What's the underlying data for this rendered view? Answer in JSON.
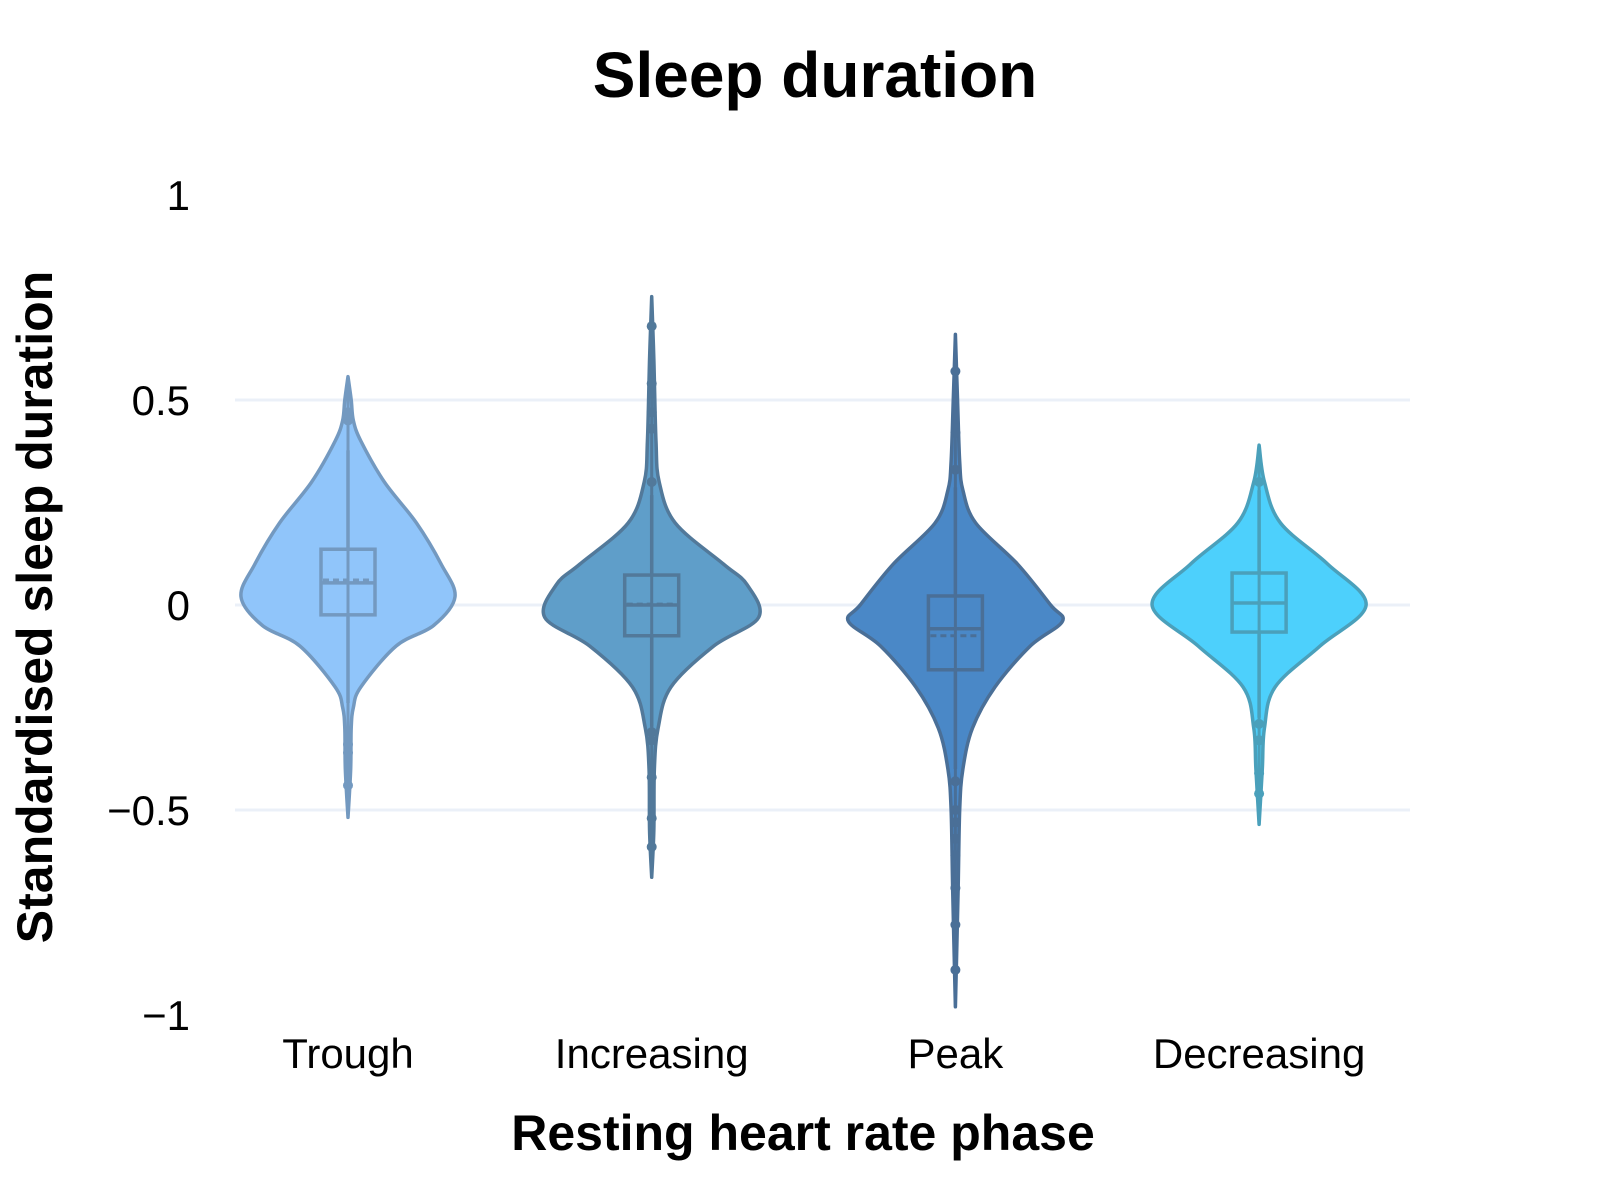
{
  "chart_data": {
    "type": "violin",
    "title": "Sleep duration",
    "xlabel": "Resting heart rate phase",
    "ylabel": "Standardised sleep duration",
    "ylim": [
      -1,
      1
    ],
    "yticks": [
      1,
      0.5,
      0,
      -0.5,
      -1
    ],
    "ytick_labels": [
      "1",
      "0.5",
      "0",
      "−0.5",
      "−1"
    ],
    "grid": true,
    "categories": [
      "Trough",
      "Increasing",
      "Peak",
      "Decreasing"
    ],
    "series": [
      {
        "category": "Trough",
        "fill": "#90c5fa",
        "line": "#7399c0",
        "box": {
          "q1": -0.024,
          "median": 0.054,
          "mean": 0.061,
          "q3": 0.136,
          "whisker_low": -0.239,
          "whisker_high": 0.377
        },
        "range": [
          -0.518,
          0.557
        ],
        "outliers": [
          0.47,
          0.45,
          -0.34,
          -0.36,
          -0.44
        ],
        "density": [
          [
            0.557,
            0
          ],
          [
            0.5,
            0.03
          ],
          [
            0.45,
            0.05
          ],
          [
            0.4,
            0.12
          ],
          [
            0.3,
            0.34
          ],
          [
            0.2,
            0.64
          ],
          [
            0.1,
            0.87
          ],
          [
            0.02,
            1.0
          ],
          [
            -0.05,
            0.8
          ],
          [
            -0.1,
            0.45
          ],
          [
            -0.2,
            0.12
          ],
          [
            -0.25,
            0.05
          ],
          [
            -0.3,
            0.03
          ],
          [
            -0.4,
            0.025
          ],
          [
            -0.518,
            0
          ]
        ]
      },
      {
        "category": "Increasing",
        "fill": "#5f9ec9",
        "line": "#52799a",
        "box": {
          "q1": -0.075,
          "median": 0.0,
          "mean": 0.002,
          "q3": 0.073,
          "whisker_low": -0.297,
          "whisker_high": 0.268
        },
        "range": [
          -0.664,
          0.752
        ],
        "outliers": [
          0.68,
          0.54,
          0.47,
          0.43,
          0.3,
          -0.31,
          -0.33,
          -0.42,
          -0.52,
          -0.59
        ],
        "density": [
          [
            0.752,
            0
          ],
          [
            0.6,
            0.02
          ],
          [
            0.4,
            0.04
          ],
          [
            0.3,
            0.07
          ],
          [
            0.2,
            0.22
          ],
          [
            0.1,
            0.67
          ],
          [
            0.05,
            0.89
          ],
          [
            -0.03,
            1.0
          ],
          [
            -0.1,
            0.58
          ],
          [
            -0.2,
            0.18
          ],
          [
            -0.3,
            0.06
          ],
          [
            -0.4,
            0.025
          ],
          [
            -0.55,
            0.02
          ],
          [
            -0.664,
            0
          ]
        ]
      },
      {
        "category": "Peak",
        "fill": "#4a88c7",
        "line": "#4a6f97",
        "box": {
          "q1": -0.158,
          "median": -0.058,
          "mean": -0.075,
          "q3": 0.022,
          "whisker_low": -0.4,
          "whisker_high": 0.287
        },
        "range": [
          -0.98,
          0.66
        ],
        "outliers": [
          0.57,
          0.42,
          0.33,
          -0.43,
          -0.5,
          -0.53,
          -0.57,
          -0.61,
          -0.69,
          -0.78,
          -0.89
        ],
        "density": [
          [
            0.66,
            0
          ],
          [
            0.5,
            0.02
          ],
          [
            0.35,
            0.04
          ],
          [
            0.28,
            0.07
          ],
          [
            0.2,
            0.19
          ],
          [
            0.1,
            0.58
          ],
          [
            0.0,
            0.89
          ],
          [
            -0.04,
            1.0
          ],
          [
            -0.1,
            0.7
          ],
          [
            -0.2,
            0.37
          ],
          [
            -0.3,
            0.16
          ],
          [
            -0.4,
            0.07
          ],
          [
            -0.5,
            0.04
          ],
          [
            -0.7,
            0.025
          ],
          [
            -0.98,
            0
          ]
        ]
      },
      {
        "category": "Decreasing",
        "fill": "#4dd0fc",
        "line": "#4aa0bb",
        "box": {
          "q1": -0.066,
          "median": 0.005,
          "mean": 0.005,
          "q3": 0.078,
          "whisker_low": -0.275,
          "whisker_high": 0.28
        },
        "range": [
          -0.535,
          0.39
        ],
        "outliers": [
          0.3,
          -0.29,
          -0.33,
          -0.41,
          -0.46
        ],
        "density": [
          [
            0.39,
            0
          ],
          [
            0.3,
            0.05
          ],
          [
            0.2,
            0.2
          ],
          [
            0.1,
            0.64
          ],
          [
            0.0,
            1.0
          ],
          [
            -0.1,
            0.57
          ],
          [
            -0.2,
            0.15
          ],
          [
            -0.3,
            0.05
          ],
          [
            -0.4,
            0.03
          ],
          [
            -0.535,
            0
          ]
        ]
      }
    ]
  }
}
